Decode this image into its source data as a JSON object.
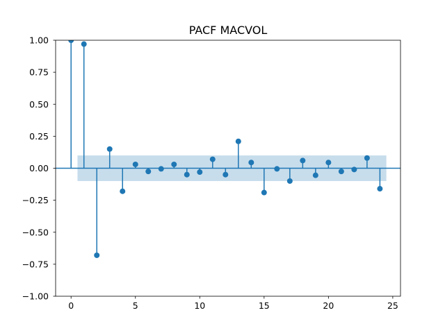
{
  "chart_data": {
    "type": "stem",
    "title": "PACF MACVOL",
    "xlabel": "",
    "ylabel": "",
    "xlim": [
      -1.2,
      25.6
    ],
    "ylim": [
      -1.0,
      1.0
    ],
    "x_ticks": [
      0,
      5,
      10,
      15,
      20,
      25
    ],
    "y_ticks": [
      1.0,
      0.75,
      0.5,
      0.25,
      0.0,
      -0.25,
      -0.5,
      -0.75,
      -1.0
    ],
    "x_tick_labels": [
      "0",
      "5",
      "10",
      "15",
      "20",
      "25"
    ],
    "y_tick_labels": [
      "1.00",
      "0.75",
      "0.50",
      "0.25",
      "0.00",
      "−0.25",
      "−0.50",
      "−0.75",
      "−1.00"
    ],
    "grid": false,
    "legend": "none",
    "series": [
      {
        "x": [
          0,
          1,
          2,
          3,
          4,
          5,
          6,
          7,
          8,
          9,
          10,
          11,
          12,
          13,
          14,
          15,
          16,
          17,
          18,
          19,
          20,
          21,
          22,
          23,
          24
        ],
        "values": [
          1.0,
          0.97,
          -0.68,
          0.15,
          -0.18,
          0.03,
          -0.025,
          -0.005,
          0.03,
          -0.05,
          -0.03,
          0.07,
          -0.05,
          0.21,
          0.045,
          -0.19,
          -0.005,
          -0.1,
          0.06,
          -0.055,
          0.045,
          -0.025,
          -0.01,
          0.08,
          -0.16
        ]
      }
    ],
    "confidence_band": {
      "x_start": 0.5,
      "x_end": 24.5,
      "lower": -0.1,
      "upper": 0.1
    },
    "colors": {
      "stem": "#1f77b4",
      "band": "#1f77b4",
      "band_opacity": 0.25,
      "axes": "#000000"
    }
  }
}
